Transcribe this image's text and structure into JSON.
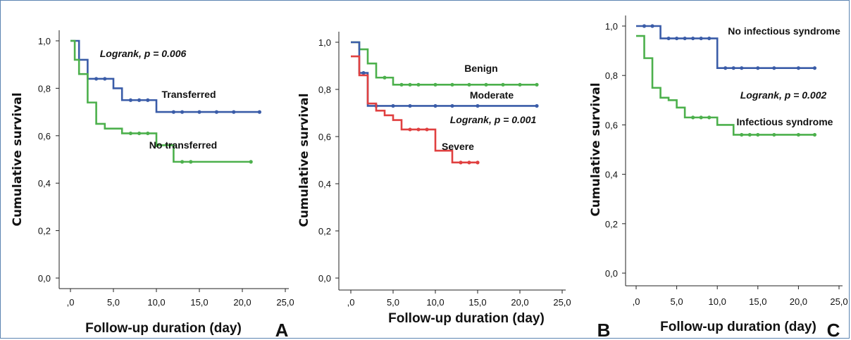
{
  "chart_data": [
    {
      "panel": "A",
      "type": "line",
      "ylabel": "Cumulative survival",
      "xlabel": "Follow-up duration (day)",
      "x_ticks": [
        ",0",
        "5,0",
        "10,0",
        "15,0",
        "20,0",
        "25,0"
      ],
      "y_ticks": [
        "0,0",
        "0,2",
        "0,4",
        "0,6",
        "0,8",
        "1,0"
      ],
      "xlim": [
        0,
        25
      ],
      "ylim": [
        0,
        1
      ],
      "annotation": "Logrank, p = 0.006",
      "series": [
        {
          "name": "Transferred",
          "color": "#3a5ca8",
          "steps": [
            [
              0,
              1.0
            ],
            [
              1,
              0.92
            ],
            [
              2,
              0.84
            ],
            [
              5,
              0.8
            ],
            [
              6,
              0.75
            ],
            [
              10,
              0.7
            ],
            [
              22,
              0.7
            ]
          ],
          "censored": [
            [
              3,
              0.84
            ],
            [
              4,
              0.84
            ],
            [
              7,
              0.75
            ],
            [
              8,
              0.75
            ],
            [
              9,
              0.75
            ],
            [
              12,
              0.7
            ],
            [
              13,
              0.7
            ],
            [
              15,
              0.7
            ],
            [
              17,
              0.7
            ],
            [
              19,
              0.7
            ],
            [
              22,
              0.7
            ]
          ]
        },
        {
          "name": "No transferred",
          "color": "#4cb04c",
          "steps": [
            [
              0,
              1.0
            ],
            [
              0.5,
              0.92
            ],
            [
              1,
              0.86
            ],
            [
              2,
              0.74
            ],
            [
              3,
              0.65
            ],
            [
              4,
              0.63
            ],
            [
              6,
              0.61
            ],
            [
              10,
              0.56
            ],
            [
              12,
              0.49
            ],
            [
              21,
              0.49
            ]
          ],
          "censored": [
            [
              7,
              0.61
            ],
            [
              8,
              0.61
            ],
            [
              9,
              0.61
            ],
            [
              10,
              0.56
            ],
            [
              13,
              0.49
            ],
            [
              14,
              0.49
            ],
            [
              21,
              0.49
            ]
          ]
        }
      ]
    },
    {
      "panel": "B",
      "type": "line",
      "ylabel": "Cumulative survival",
      "xlabel": "Follow-up duration (day)",
      "x_ticks": [
        ",0",
        "5,0",
        "10,0",
        "15,0",
        "20,0",
        "25,0"
      ],
      "y_ticks": [
        "0,0",
        "0,2",
        "0,4",
        "0,6",
        "0,8",
        "1,0"
      ],
      "xlim": [
        0,
        25
      ],
      "ylim": [
        0,
        1
      ],
      "annotation": "Logrank, p = 0.001",
      "series": [
        {
          "name": "Benign",
          "color": "#4cb04c",
          "steps": [
            [
              0,
              1.0
            ],
            [
              1,
              0.97
            ],
            [
              2,
              0.91
            ],
            [
              3,
              0.85
            ],
            [
              5,
              0.82
            ],
            [
              22,
              0.82
            ]
          ],
          "censored": [
            [
              4,
              0.85
            ],
            [
              6,
              0.82
            ],
            [
              7,
              0.82
            ],
            [
              8,
              0.82
            ],
            [
              10,
              0.82
            ],
            [
              12,
              0.82
            ],
            [
              14,
              0.82
            ],
            [
              16,
              0.82
            ],
            [
              18,
              0.82
            ],
            [
              20,
              0.82
            ],
            [
              22,
              0.82
            ]
          ]
        },
        {
          "name": "Moderate",
          "color": "#3a5ca8",
          "steps": [
            [
              0,
              1.0
            ],
            [
              1,
              0.87
            ],
            [
              2,
              0.73
            ],
            [
              22,
              0.73
            ]
          ],
          "censored": [
            [
              1.5,
              0.87
            ],
            [
              3,
              0.73
            ],
            [
              5,
              0.73
            ],
            [
              7,
              0.73
            ],
            [
              10,
              0.73
            ],
            [
              12,
              0.73
            ],
            [
              15,
              0.73
            ],
            [
              22,
              0.73
            ]
          ]
        },
        {
          "name": "Severe",
          "color": "#e04040",
          "steps": [
            [
              0,
              0.94
            ],
            [
              1,
              0.86
            ],
            [
              2,
              0.74
            ],
            [
              3,
              0.71
            ],
            [
              4,
              0.69
            ],
            [
              5,
              0.67
            ],
            [
              6,
              0.63
            ],
            [
              10,
              0.54
            ],
            [
              12,
              0.49
            ],
            [
              15,
              0.49
            ]
          ],
          "censored": [
            [
              7,
              0.63
            ],
            [
              8,
              0.63
            ],
            [
              9,
              0.63
            ],
            [
              13,
              0.49
            ],
            [
              14,
              0.49
            ],
            [
              15,
              0.49
            ]
          ]
        }
      ]
    },
    {
      "panel": "C",
      "type": "line",
      "ylabel": "Cumulative survival",
      "xlabel": "Follow-up duration (day)",
      "x_ticks": [
        ",0",
        "5,0",
        "10,0",
        "15,0",
        "20,0",
        "25,0"
      ],
      "y_ticks": [
        "0,0",
        "0,2",
        "0,4",
        "0,6",
        "0,8",
        "1,0"
      ],
      "xlim": [
        0,
        25
      ],
      "ylim": [
        0,
        1
      ],
      "annotation": "Logrank, p = 0.002",
      "series": [
        {
          "name": "No infectious syndrome",
          "color": "#3a5ca8",
          "steps": [
            [
              0,
              1.0
            ],
            [
              3,
              0.95
            ],
            [
              10,
              0.83
            ],
            [
              22,
              0.83
            ]
          ],
          "censored": [
            [
              1,
              1.0
            ],
            [
              2,
              1.0
            ],
            [
              4,
              0.95
            ],
            [
              5,
              0.95
            ],
            [
              6,
              0.95
            ],
            [
              7,
              0.95
            ],
            [
              8,
              0.95
            ],
            [
              9,
              0.95
            ],
            [
              11,
              0.83
            ],
            [
              12,
              0.83
            ],
            [
              13,
              0.83
            ],
            [
              15,
              0.83
            ],
            [
              17,
              0.83
            ],
            [
              20,
              0.83
            ],
            [
              22,
              0.83
            ]
          ]
        },
        {
          "name": "Infectious syndrome",
          "color": "#4cb04c",
          "steps": [
            [
              0,
              0.96
            ],
            [
              1,
              0.87
            ],
            [
              2,
              0.75
            ],
            [
              3,
              0.71
            ],
            [
              4,
              0.7
            ],
            [
              5,
              0.67
            ],
            [
              6,
              0.63
            ],
            [
              10,
              0.6
            ],
            [
              12,
              0.56
            ],
            [
              22,
              0.56
            ]
          ],
          "censored": [
            [
              7,
              0.63
            ],
            [
              8,
              0.63
            ],
            [
              9,
              0.63
            ],
            [
              13,
              0.56
            ],
            [
              14,
              0.56
            ],
            [
              15,
              0.56
            ],
            [
              17,
              0.56
            ],
            [
              20,
              0.56
            ],
            [
              22,
              0.56
            ]
          ]
        }
      ]
    }
  ]
}
